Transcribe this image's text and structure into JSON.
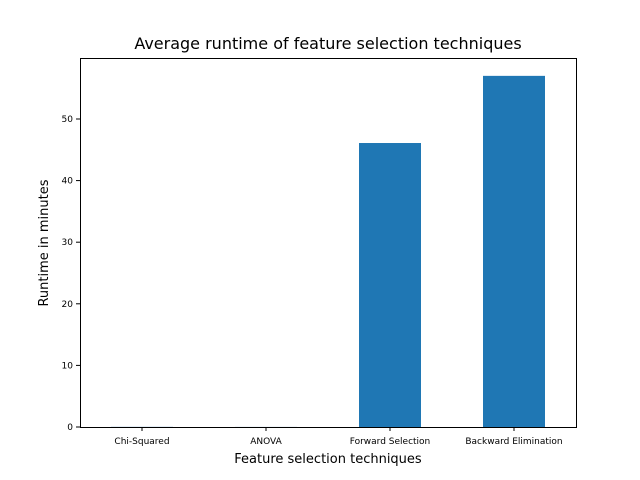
{
  "chart_data": {
    "type": "bar",
    "title": "Average runtime of feature selection techniques",
    "xlabel": "Feature selection techniques",
    "ylabel": "Runtime in minutes",
    "categories": [
      "Chi-Squared",
      "ANOVA",
      "Forward Selection",
      "Backward Elimination"
    ],
    "values": [
      0.02,
      0.01,
      46.1,
      57.0
    ],
    "ylim": [
      0,
      59.9
    ],
    "yticks": [
      0,
      10,
      20,
      30,
      40,
      50
    ],
    "bar_color": "#1f77b4",
    "grid": false
  }
}
